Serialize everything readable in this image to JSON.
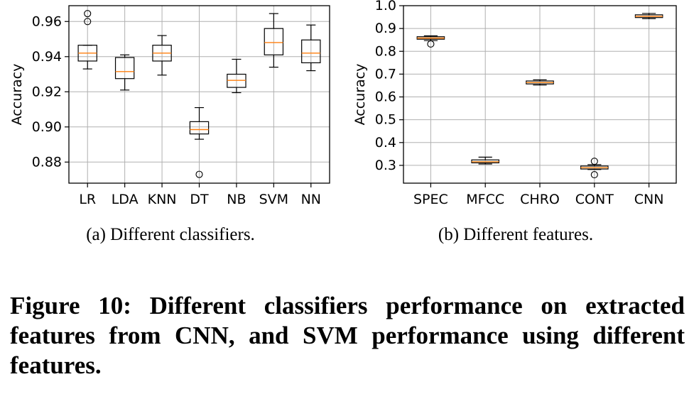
{
  "chart_data": [
    {
      "type": "box",
      "title": "",
      "subcaption": "(a) Different classifiers.",
      "xlabel": "",
      "ylabel": "Accuracy",
      "ylim": [
        0.868,
        0.969
      ],
      "yticks": [
        0.88,
        0.9,
        0.92,
        0.94,
        0.96
      ],
      "ytick_labels": [
        "0.88",
        "0.90",
        "0.92",
        "0.94",
        "0.96"
      ],
      "grid": true,
      "categories": [
        "LR",
        "LDA",
        "KNN",
        "DT",
        "NB",
        "SVM",
        "NN"
      ],
      "boxes": [
        {
          "whisker_low": 0.933,
          "q1": 0.9375,
          "median": 0.942,
          "q3": 0.9465,
          "whisker_high": 0.9465,
          "outliers": [
            0.96,
            0.9645
          ]
        },
        {
          "whisker_low": 0.921,
          "q1": 0.9275,
          "median": 0.9315,
          "q3": 0.9395,
          "whisker_high": 0.941,
          "outliers": []
        },
        {
          "whisker_low": 0.9295,
          "q1": 0.9375,
          "median": 0.942,
          "q3": 0.9465,
          "whisker_high": 0.952,
          "outliers": []
        },
        {
          "whisker_low": 0.893,
          "q1": 0.896,
          "median": 0.8985,
          "q3": 0.903,
          "whisker_high": 0.911,
          "outliers": [
            0.873
          ]
        },
        {
          "whisker_low": 0.9195,
          "q1": 0.9225,
          "median": 0.9265,
          "q3": 0.93,
          "whisker_high": 0.9385,
          "outliers": []
        },
        {
          "whisker_low": 0.934,
          "q1": 0.941,
          "median": 0.948,
          "q3": 0.956,
          "whisker_high": 0.9645,
          "outliers": []
        },
        {
          "whisker_low": 0.932,
          "q1": 0.9365,
          "median": 0.942,
          "q3": 0.9495,
          "whisker_high": 0.958,
          "outliers": []
        }
      ]
    },
    {
      "type": "box",
      "title": "",
      "subcaption": "(b) Different features.",
      "xlabel": "",
      "ylabel": "Accuracy",
      "ylim": [
        0.222,
        1.0
      ],
      "yticks": [
        0.3,
        0.4,
        0.5,
        0.6,
        0.7,
        0.8,
        0.9,
        1.0
      ],
      "ytick_labels": [
        "0.3",
        "0.4",
        "0.5",
        "0.6",
        "0.7",
        "0.8",
        "0.9",
        "1.0"
      ],
      "grid": true,
      "categories": [
        "SPEC",
        "MFCC",
        "CHRO",
        "CONT",
        "CNN"
      ],
      "boxes": [
        {
          "whisker_low": 0.847,
          "q1": 0.853,
          "median": 0.858,
          "q3": 0.864,
          "whisker_high": 0.868,
          "outliers": [
            0.832
          ]
        },
        {
          "whisker_low": 0.306,
          "q1": 0.311,
          "median": 0.316,
          "q3": 0.324,
          "whisker_high": 0.336,
          "outliers": []
        },
        {
          "whisker_low": 0.652,
          "q1": 0.657,
          "median": 0.663,
          "q3": 0.67,
          "whisker_high": 0.675,
          "outliers": []
        },
        {
          "whisker_low": 0.282,
          "q1": 0.284,
          "median": 0.29,
          "q3": 0.297,
          "whisker_high": 0.303,
          "outliers": [
            0.259,
            0.318
          ]
        },
        {
          "whisker_low": 0.943,
          "q1": 0.948,
          "median": 0.953,
          "q3": 0.96,
          "whisker_high": 0.966,
          "outliers": []
        }
      ]
    }
  ],
  "caption": "Figure 10: Different classifiers performance on extracted features from CNN, and SVM performance using different features."
}
